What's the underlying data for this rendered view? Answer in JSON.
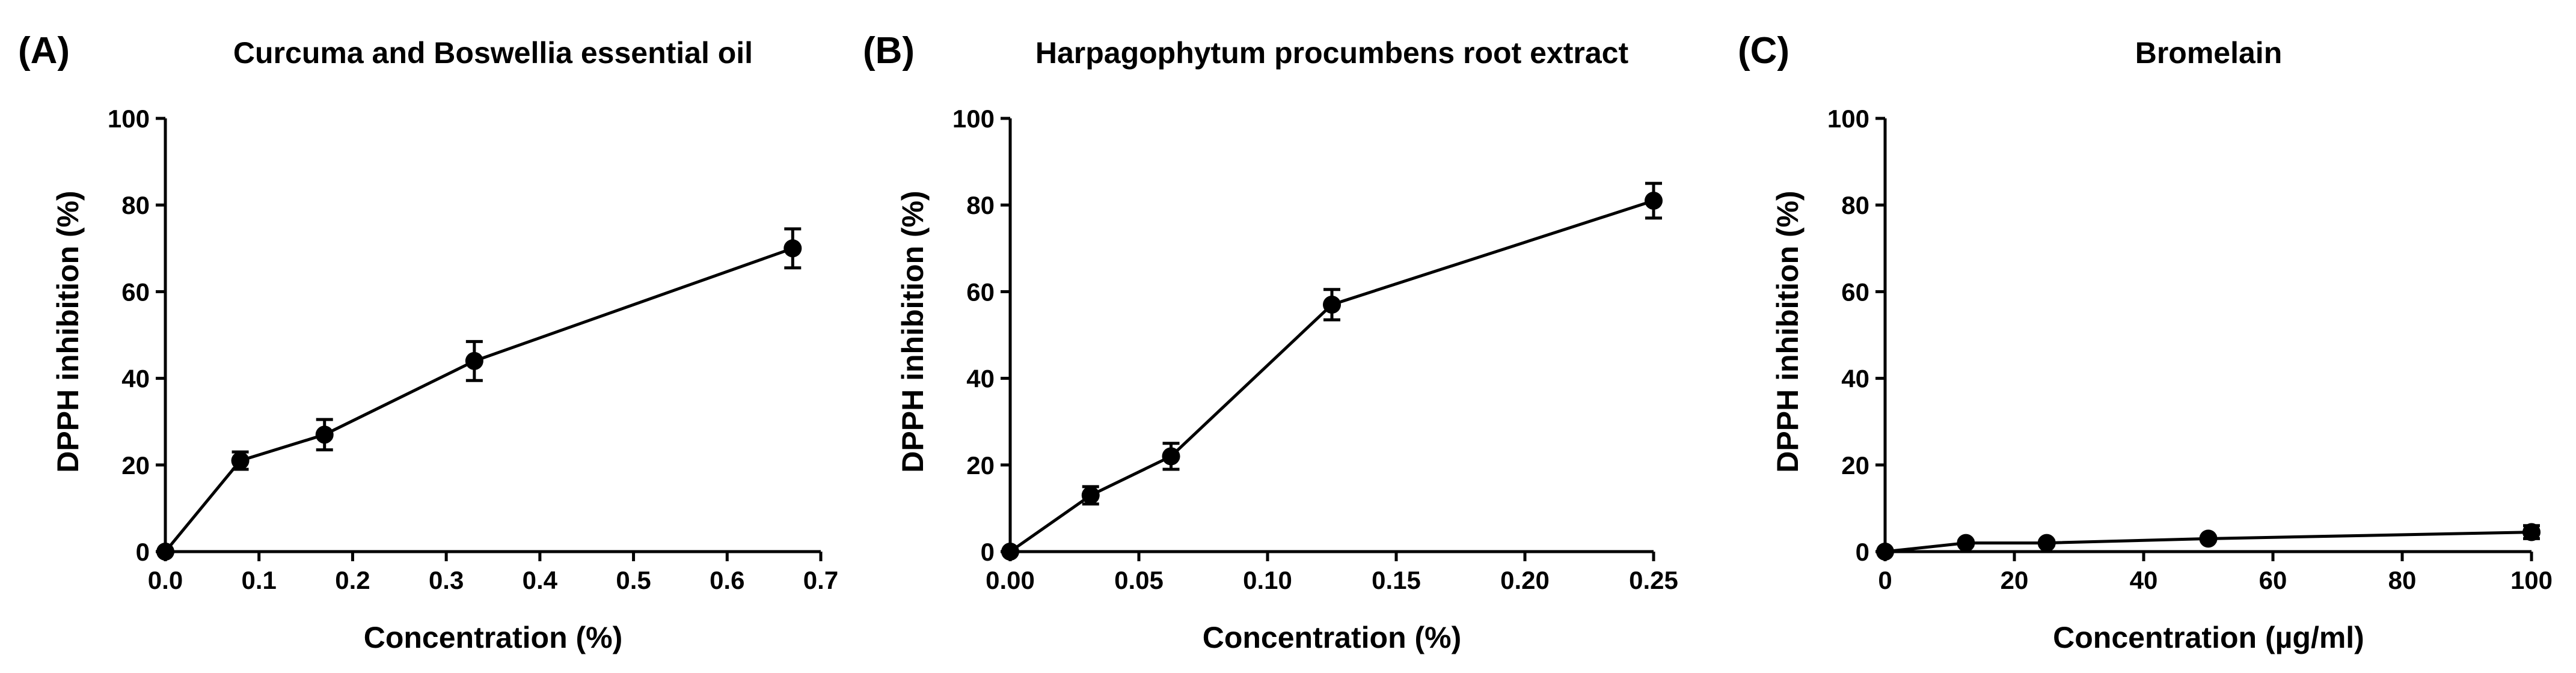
{
  "chart_data": [
    {
      "type": "line",
      "panel_label": "(A)",
      "title": "Curcuma and Boswellia essential oil",
      "xlabel": "Concentration (%)",
      "ylabel": "DPPH inhibition (%)",
      "xlim": [
        0,
        0.7
      ],
      "ylim": [
        0,
        100
      ],
      "x_ticks": [
        0.0,
        0.1,
        0.2,
        0.3,
        0.4,
        0.5,
        0.6,
        0.7
      ],
      "x_tick_labels": [
        "0.0",
        "0.1",
        "0.2",
        "0.3",
        "0.4",
        "0.5",
        "0.6",
        "0.7"
      ],
      "y_ticks": [
        0,
        20,
        40,
        60,
        80,
        100
      ],
      "y_tick_labels": [
        "0",
        "20",
        "40",
        "60",
        "80",
        "100"
      ],
      "grid": false,
      "marker": "circle",
      "x": [
        0,
        0.08,
        0.17,
        0.33,
        0.67
      ],
      "y": [
        0,
        21,
        27,
        44,
        70
      ],
      "error": [
        0,
        2,
        3.5,
        4.5,
        4.5
      ]
    },
    {
      "type": "line",
      "panel_label": "(B)",
      "title": "Harpagophytum procumbens root extract",
      "xlabel": "Concentration (%)",
      "ylabel": "DPPH inhibition (%)",
      "xlim": [
        0,
        0.25
      ],
      "ylim": [
        0,
        100
      ],
      "x_ticks": [
        0.0,
        0.05,
        0.1,
        0.15,
        0.2,
        0.25
      ],
      "x_tick_labels": [
        "0.00",
        "0.05",
        "0.10",
        "0.15",
        "0.20",
        "0.25"
      ],
      "y_ticks": [
        0,
        20,
        40,
        60,
        80,
        100
      ],
      "y_tick_labels": [
        "0",
        "20",
        "40",
        "60",
        "80",
        "100"
      ],
      "grid": false,
      "marker": "circle",
      "x": [
        0,
        0.03125,
        0.0625,
        0.125,
        0.25
      ],
      "y": [
        0,
        13,
        22,
        57,
        81
      ],
      "error": [
        0,
        2,
        3,
        3.5,
        4
      ]
    },
    {
      "type": "line",
      "panel_label": "(C)",
      "title": "Bromelain",
      "xlabel": "Concentration (µg/ml)",
      "ylabel": "DPPH inhibition (%)",
      "xlim": [
        0,
        100
      ],
      "ylim": [
        0,
        100
      ],
      "x_ticks": [
        0,
        20,
        40,
        60,
        80,
        100
      ],
      "x_tick_labels": [
        "0",
        "20",
        "40",
        "60",
        "80",
        "100"
      ],
      "y_ticks": [
        0,
        20,
        40,
        60,
        80,
        100
      ],
      "y_tick_labels": [
        "0",
        "20",
        "40",
        "60",
        "80",
        "100"
      ],
      "grid": false,
      "marker": "circle",
      "x": [
        0,
        12.5,
        25,
        50,
        100
      ],
      "y": [
        0,
        2,
        2,
        3,
        4.5
      ],
      "error": [
        0,
        0.5,
        0.5,
        0.5,
        1.5
      ]
    }
  ]
}
